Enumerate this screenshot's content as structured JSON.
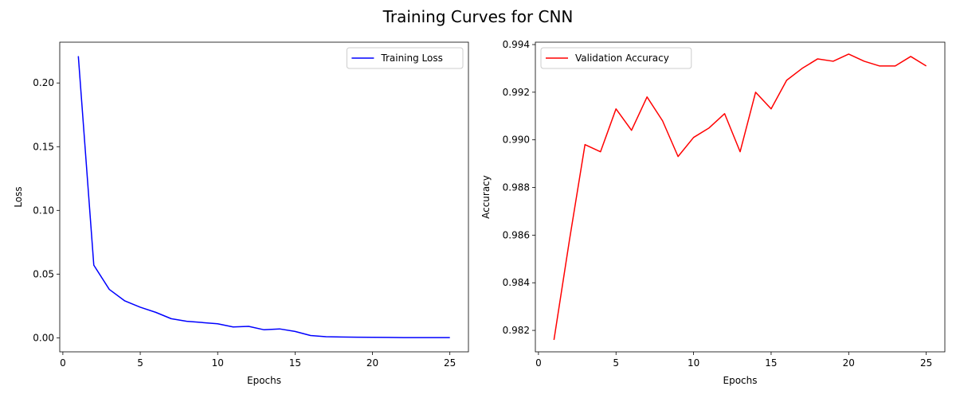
{
  "figure": {
    "title": "Training Curves for CNN"
  },
  "chart_data": [
    {
      "type": "line",
      "xlabel": "Epochs",
      "ylabel": "Loss",
      "xlim": [
        -0.2,
        26.2
      ],
      "ylim": [
        -0.011,
        0.232
      ],
      "xticks": [
        0,
        5,
        10,
        15,
        20,
        25
      ],
      "xtick_labels": [
        "0",
        "5",
        "10",
        "15",
        "20",
        "25"
      ],
      "yticks": [
        0.0,
        0.05,
        0.1,
        0.15,
        0.2
      ],
      "ytick_labels": [
        "0.00",
        "0.05",
        "0.10",
        "0.15",
        "0.20"
      ],
      "grid": false,
      "legend": "top-right",
      "series": [
        {
          "name": "Training Loss",
          "color": "#0000ff",
          "x": [
            1,
            2,
            3,
            4,
            5,
            6,
            7,
            8,
            9,
            10,
            11,
            12,
            13,
            14,
            15,
            16,
            17,
            18,
            19,
            20,
            21,
            22,
            23,
            24,
            25
          ],
          "values": [
            0.221,
            0.057,
            0.038,
            0.029,
            0.024,
            0.02,
            0.015,
            0.013,
            0.012,
            0.011,
            0.0085,
            0.009,
            0.0063,
            0.007,
            0.005,
            0.0018,
            0.0009,
            0.0006,
            0.0005,
            0.0004,
            0.0003,
            0.0002,
            0.0002,
            0.0002,
            0.0002
          ]
        }
      ]
    },
    {
      "type": "line",
      "xlabel": "Epochs",
      "ylabel": "Accuracy",
      "xlim": [
        -0.2,
        26.2
      ],
      "ylim": [
        0.9811,
        0.9941
      ],
      "xticks": [
        0,
        5,
        10,
        15,
        20,
        25
      ],
      "xtick_labels": [
        "0",
        "5",
        "10",
        "15",
        "20",
        "25"
      ],
      "yticks": [
        0.982,
        0.984,
        0.986,
        0.988,
        0.99,
        0.992,
        0.994
      ],
      "ytick_labels": [
        "0.982",
        "0.984",
        "0.986",
        "0.988",
        "0.990",
        "0.992",
        "0.994"
      ],
      "grid": false,
      "legend": "top-left",
      "series": [
        {
          "name": "Validation Accuracy",
          "color": "#ff0000",
          "x": [
            1,
            2,
            3,
            4,
            5,
            6,
            7,
            8,
            9,
            10,
            11,
            12,
            13,
            14,
            15,
            16,
            17,
            18,
            19,
            20,
            21,
            22,
            23,
            24,
            25
          ],
          "values": [
            0.9816,
            0.9858,
            0.9898,
            0.9895,
            0.9913,
            0.9904,
            0.9918,
            0.9908,
            0.9893,
            0.9901,
            0.9905,
            0.9911,
            0.9895,
            0.992,
            0.9913,
            0.9925,
            0.993,
            0.9934,
            0.9933,
            0.9936,
            0.9933,
            0.9931,
            0.9931,
            0.9935,
            0.9931
          ]
        }
      ]
    }
  ]
}
